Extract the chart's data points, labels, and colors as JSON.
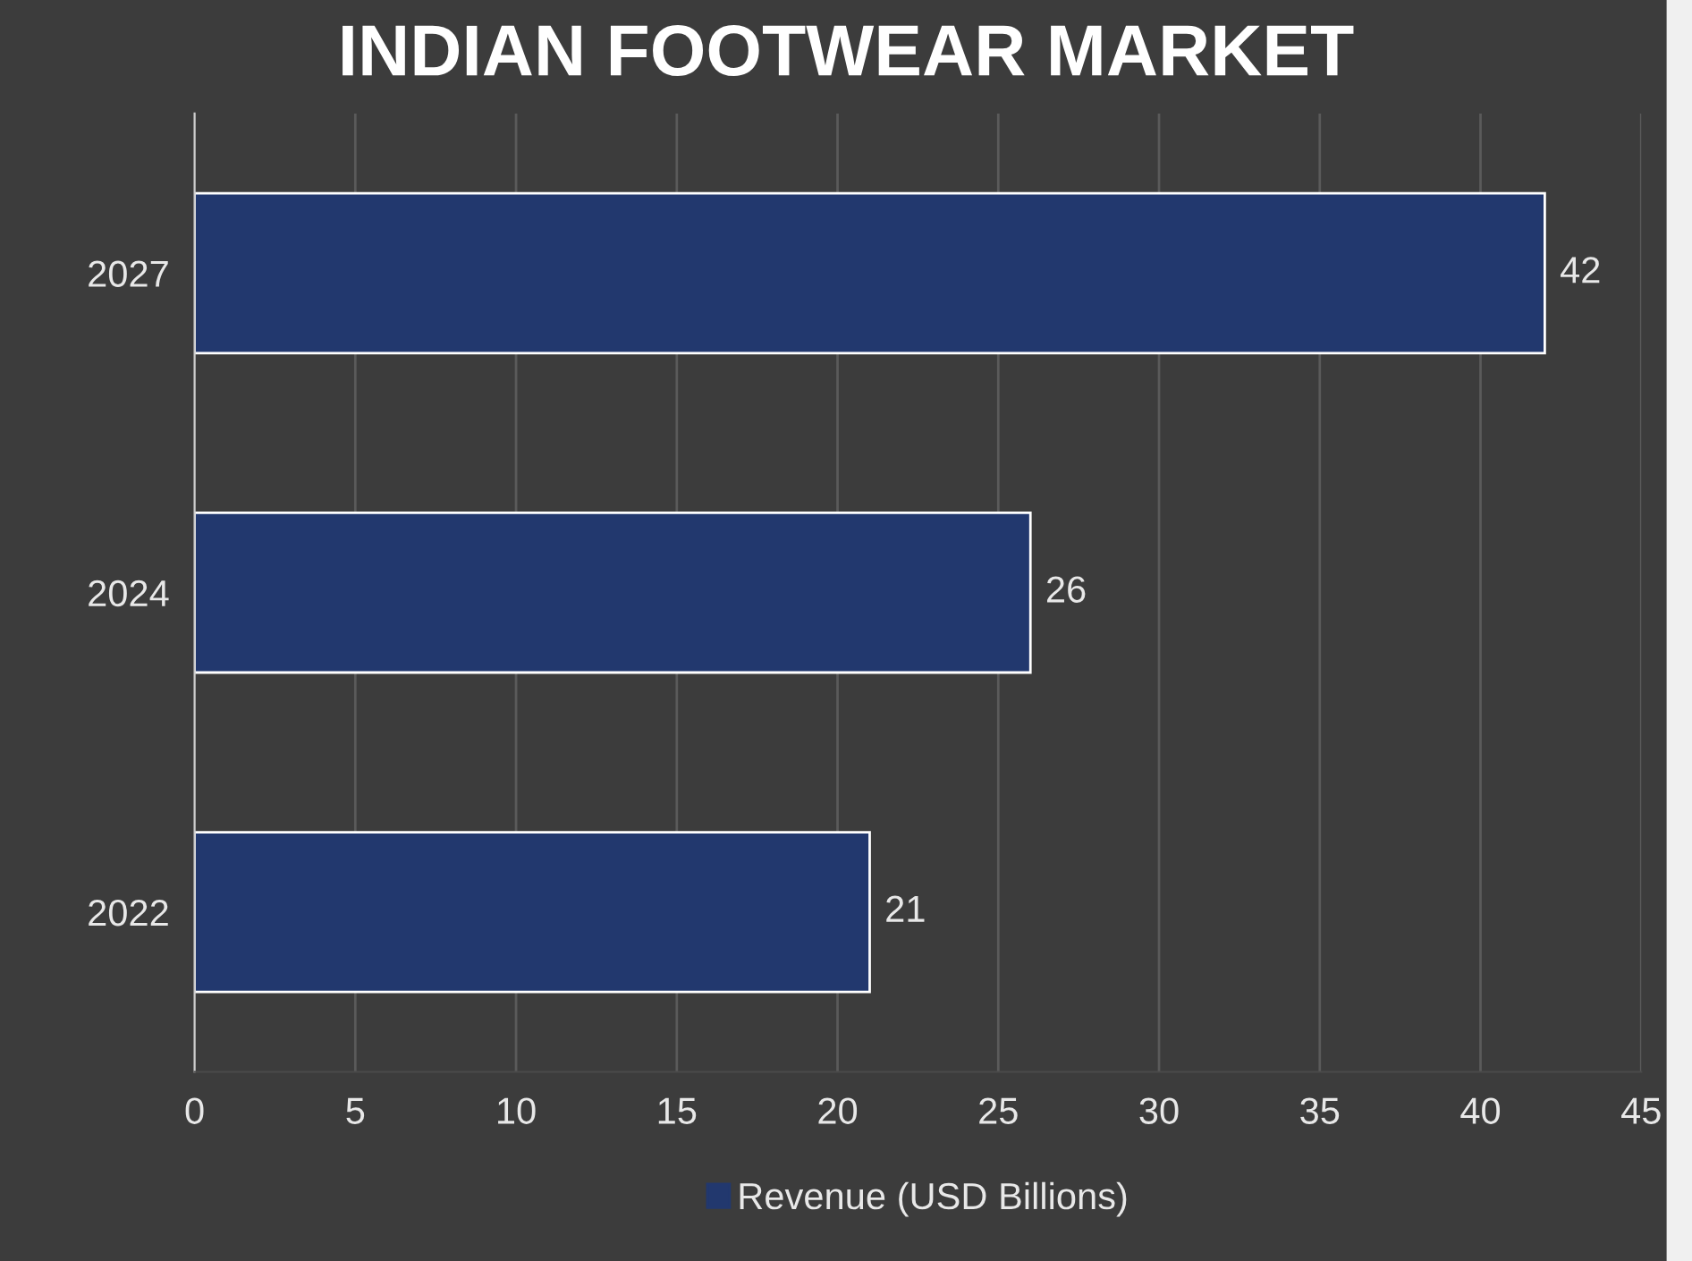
{
  "chart_data": {
    "type": "bar",
    "orientation": "horizontal",
    "title": "INDIAN FOOTWEAR MARKET",
    "categories": [
      "2027",
      "2024",
      "2022"
    ],
    "series": [
      {
        "name": "Revenue (USD Billions)",
        "color": "#22386e",
        "values": [
          42,
          26,
          21
        ]
      }
    ],
    "xlim": [
      0,
      45
    ],
    "xticks": [
      0,
      5,
      10,
      15,
      20,
      25,
      30,
      35,
      40,
      45
    ],
    "grid": "x",
    "legend": "bottom",
    "data_labels": true
  }
}
